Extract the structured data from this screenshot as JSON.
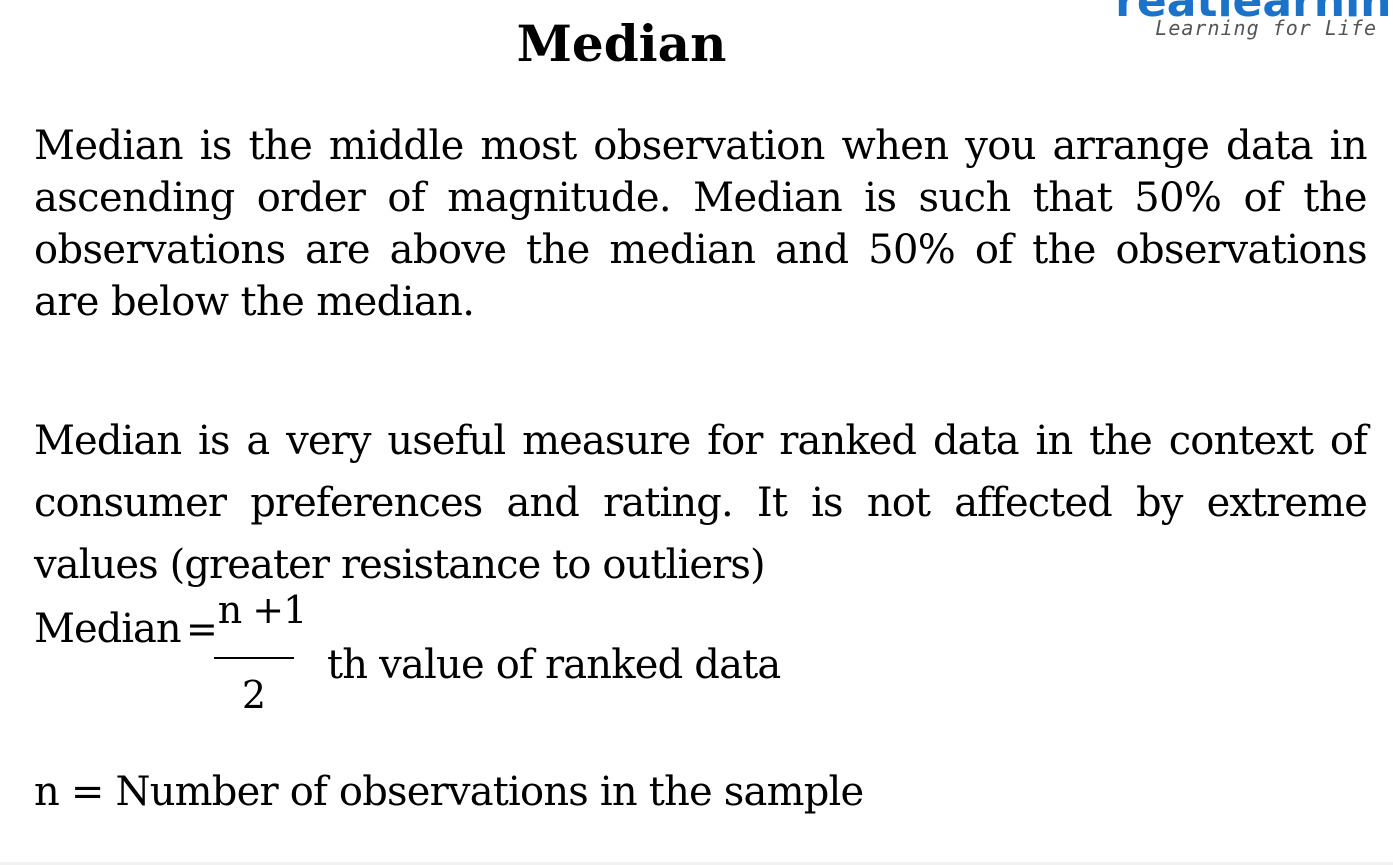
{
  "slide": {
    "title": "Median"
  },
  "logo": {
    "wordmark": "greatlearning",
    "tagline": "Learning for Life",
    "color": "#1a73c8"
  },
  "content": {
    "paragraph_1": "Median is the middle most observation when you arrange data in ascending order of magnitude. Median is such that 50% of the observations are above the median and 50% of the observations are below the median.",
    "paragraph_2": "Median is a very useful measure for ranked data in the context of consumer preferences and rating. It is not affected by extreme values (greater resistance to outliers)",
    "formula": {
      "label": "Median",
      "equals": "=",
      "numerator": "n +1",
      "denominator": "2",
      "suffix": "th value of ranked data"
    },
    "definition": "n = Number of observations in the sample"
  }
}
